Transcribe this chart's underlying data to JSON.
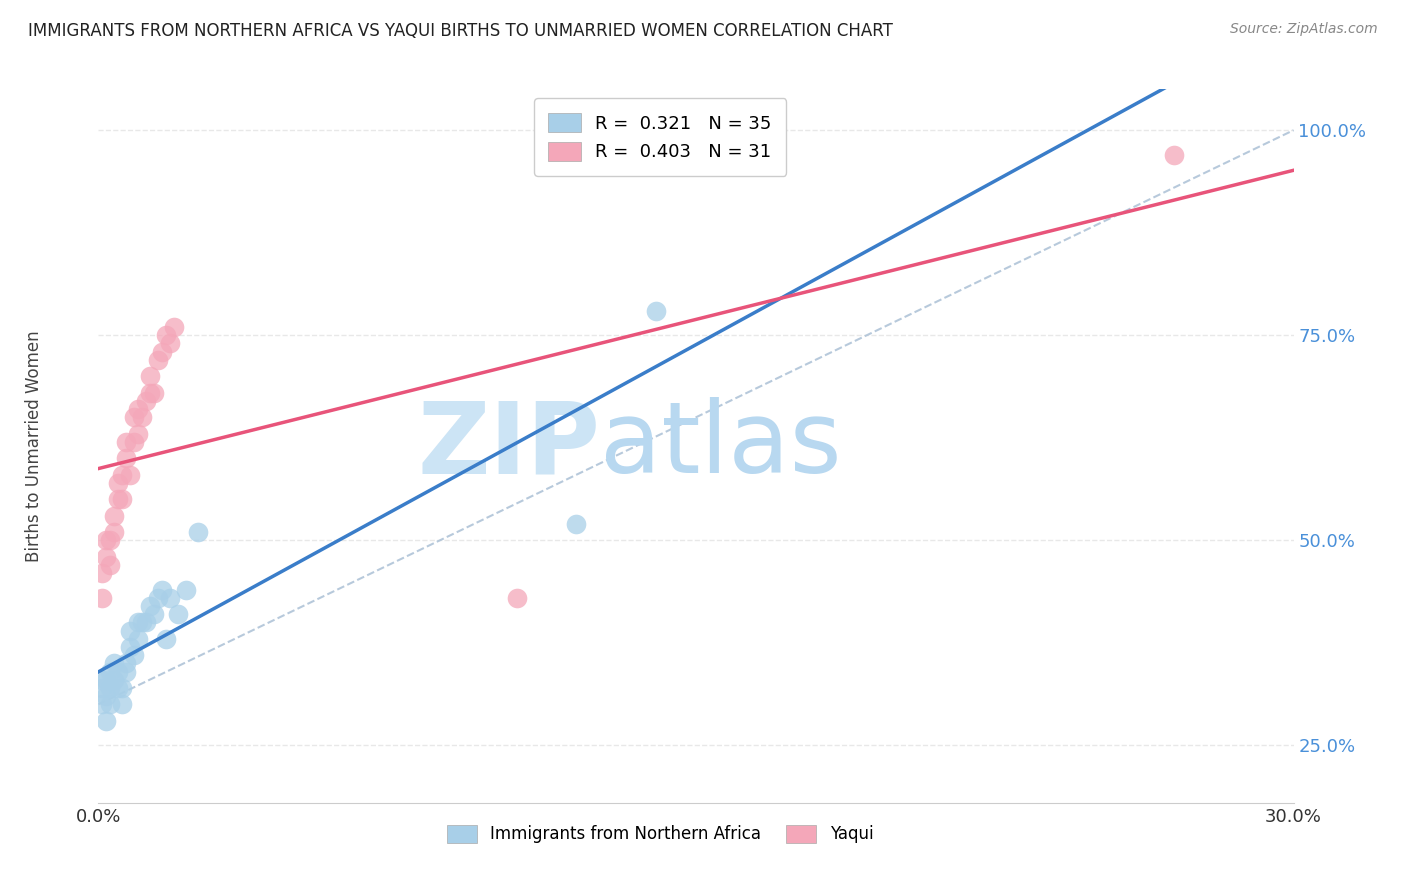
{
  "title": "IMMIGRANTS FROM NORTHERN AFRICA VS YAQUI BIRTHS TO UNMARRIED WOMEN CORRELATION CHART",
  "source": "Source: ZipAtlas.com",
  "ylabel": "Births to Unmarried Women",
  "legend_label1": "Immigrants from Northern Africa",
  "legend_label2": "Yaqui",
  "r1": 0.321,
  "n1": 35,
  "r2": 0.403,
  "n2": 31,
  "color1": "#a8cfe8",
  "color2": "#f4a7b9",
  "line_color1": "#3a7dc9",
  "line_color2": "#e8547a",
  "xlim": [
    0.0,
    0.3
  ],
  "ylim": [
    0.18,
    1.05
  ],
  "xticks": [
    0.0,
    0.05,
    0.1,
    0.15,
    0.2,
    0.25,
    0.3
  ],
  "xticklabels": [
    "0.0%",
    "",
    "",
    "",
    "",
    "",
    "30.0%"
  ],
  "yticks": [
    0.25,
    0.5,
    0.75,
    1.0
  ],
  "yticklabels": [
    "25.0%",
    "50.0%",
    "75.0%",
    "100.0%"
  ],
  "blue_x": [
    0.001,
    0.001,
    0.001,
    0.002,
    0.002,
    0.002,
    0.003,
    0.003,
    0.003,
    0.004,
    0.004,
    0.005,
    0.005,
    0.006,
    0.006,
    0.007,
    0.007,
    0.008,
    0.008,
    0.009,
    0.01,
    0.01,
    0.011,
    0.012,
    0.013,
    0.014,
    0.015,
    0.016,
    0.017,
    0.018,
    0.02,
    0.022,
    0.025,
    0.12,
    0.14
  ],
  "blue_y": [
    0.3,
    0.32,
    0.33,
    0.28,
    0.31,
    0.33,
    0.3,
    0.32,
    0.34,
    0.33,
    0.35,
    0.32,
    0.34,
    0.3,
    0.32,
    0.34,
    0.35,
    0.37,
    0.39,
    0.36,
    0.4,
    0.38,
    0.4,
    0.4,
    0.42,
    0.41,
    0.43,
    0.44,
    0.38,
    0.43,
    0.41,
    0.44,
    0.51,
    0.52,
    0.78
  ],
  "pink_x": [
    0.001,
    0.001,
    0.002,
    0.002,
    0.003,
    0.003,
    0.004,
    0.004,
    0.005,
    0.005,
    0.006,
    0.006,
    0.007,
    0.007,
    0.008,
    0.009,
    0.009,
    0.01,
    0.01,
    0.011,
    0.012,
    0.013,
    0.013,
    0.014,
    0.015,
    0.016,
    0.017,
    0.018,
    0.019,
    0.105,
    0.27
  ],
  "pink_y": [
    0.43,
    0.46,
    0.48,
    0.5,
    0.47,
    0.5,
    0.51,
    0.53,
    0.55,
    0.57,
    0.55,
    0.58,
    0.6,
    0.62,
    0.58,
    0.62,
    0.65,
    0.63,
    0.66,
    0.65,
    0.67,
    0.68,
    0.7,
    0.68,
    0.72,
    0.73,
    0.75,
    0.74,
    0.76,
    0.43,
    0.97
  ],
  "watermark_zip": "ZIP",
  "watermark_atlas": "atlas",
  "watermark_color_zip": "#cce4f5",
  "watermark_color_atlas": "#b8d8f0",
  "background_color": "#ffffff",
  "grid_color": "#e8e8e8",
  "ref_line_color": "#b0c4d8",
  "ytick_color": "#4a90d9"
}
